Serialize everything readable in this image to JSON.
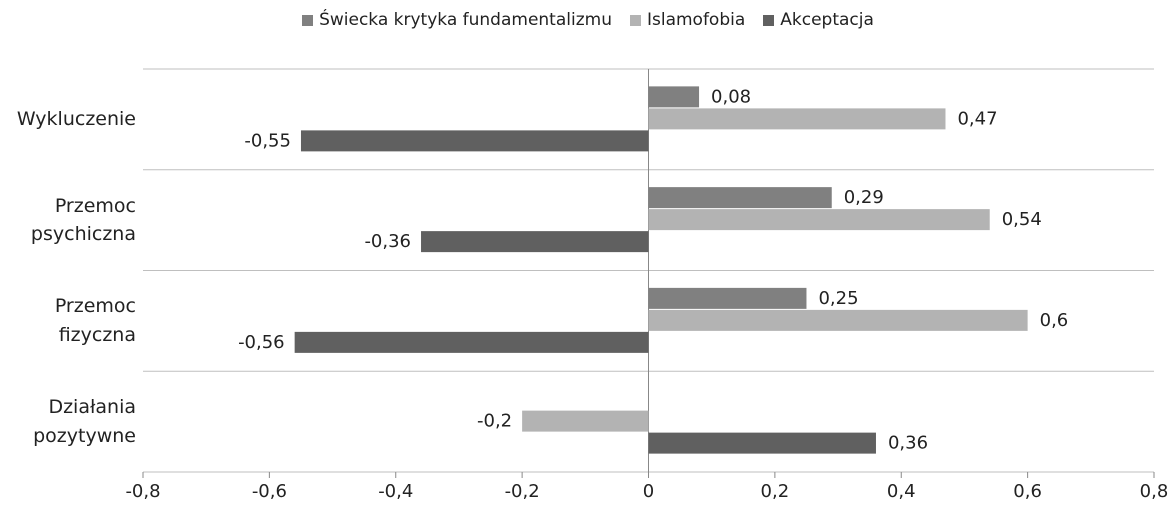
{
  "chart_data": {
    "type": "hbar",
    "categories": [
      "Wykluczenie",
      "Przemoc psychiczna",
      "Przemoc fizyczna",
      "Działania pozytywne"
    ],
    "series": [
      {
        "name": "Świecka krytyka fundamentalizmu",
        "color": "#808080",
        "values": [
          0.08,
          0.29,
          0.25,
          null
        ],
        "value_labels": [
          "0,08",
          "0,29",
          "0,25",
          null
        ]
      },
      {
        "name": "Islamofobia",
        "color": "#b3b3b3",
        "values": [
          0.47,
          0.54,
          0.6,
          -0.2
        ],
        "value_labels": [
          "0,47",
          "0,54",
          "0,6",
          "-0,2"
        ]
      },
      {
        "name": "Akceptacja",
        "color": "#606060",
        "values": [
          -0.55,
          -0.36,
          -0.56,
          0.36
        ],
        "value_labels": [
          "-0,55",
          "-0,36",
          "-0,56",
          "0,36"
        ]
      }
    ],
    "xlim": [
      -0.8,
      0.8
    ],
    "xticks": [
      {
        "value": -0.8,
        "label": "-0,8"
      },
      {
        "value": -0.6,
        "label": "-0,6"
      },
      {
        "value": -0.4,
        "label": "-0,4"
      },
      {
        "value": -0.2,
        "label": "-0,2"
      },
      0,
      {
        "value": 0.2,
        "label": "0,2"
      },
      {
        "value": 0.4,
        "label": "0,4"
      },
      {
        "value": 0.6,
        "label": "0,6"
      },
      {
        "value": 0.8,
        "label": "0,8"
      }
    ],
    "legend": "top"
  }
}
